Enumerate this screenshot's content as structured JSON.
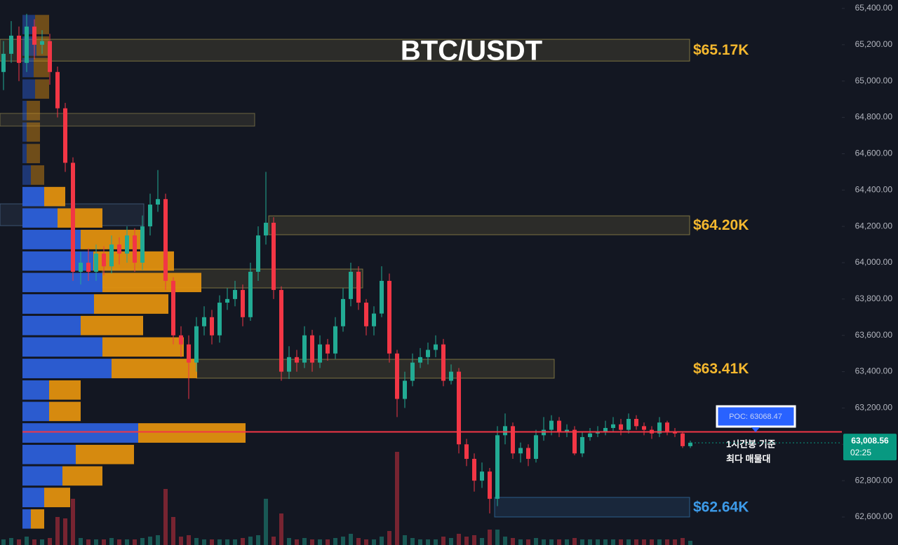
{
  "chart_data": {
    "type": "candlestick",
    "title": "BTC/USDT",
    "up_color": "#22ab94",
    "down_color": "#f23645",
    "ylim": [
      62600,
      65400
    ],
    "yticks": [
      {
        "value": 62600,
        "label": "62,600.00"
      },
      {
        "value": 62800,
        "label": "62,800.00"
      },
      {
        "value": 63000,
        "label": "63,000.00"
      },
      {
        "value": 63200,
        "label": "63,200.00"
      },
      {
        "value": 63400,
        "label": "63,400.00"
      },
      {
        "value": 63600,
        "label": "63,600.00"
      },
      {
        "value": 63800,
        "label": "63,800.00"
      },
      {
        "value": 64000,
        "label": "64,000.00"
      },
      {
        "value": 64200,
        "label": "64,200.00"
      },
      {
        "value": 64400,
        "label": "64,400.00"
      },
      {
        "value": 64600,
        "label": "64,600.00"
      },
      {
        "value": 64800,
        "label": "64,800.00"
      },
      {
        "value": 65000,
        "label": "65,000.00"
      },
      {
        "value": 65200,
        "label": "65,200.00"
      },
      {
        "value": 65400,
        "label": "65,400.00"
      }
    ],
    "open": [
      65050,
      65150,
      65250,
      65100,
      65300,
      65200,
      65220,
      65050,
      64850,
      64550,
      63950,
      64000,
      63950,
      64050,
      63980,
      64100,
      64050,
      64150,
      64000,
      64200,
      64320,
      64350,
      63900,
      63600,
      63550,
      63450,
      63650,
      63700,
      63600,
      63780,
      63800,
      63850,
      63700,
      63950,
      64150,
      64220,
      63850,
      63400,
      63480,
      63450,
      63600,
      63450,
      63550,
      63500,
      63650,
      63800,
      63950,
      63780,
      63650,
      63720,
      63900,
      63500,
      63250,
      63350,
      63450,
      63480,
      63520,
      63550,
      63350,
      63400,
      63000,
      62920,
      62800,
      62850,
      62700,
      63050,
      63100,
      62950,
      62980,
      62920,
      63050,
      63080,
      63130,
      63070,
      63080,
      62950,
      63040,
      63060,
      63070,
      63090,
      63110,
      63080,
      63140,
      63100,
      63080,
      63060,
      63120,
      63070,
      63060,
      62990
    ],
    "high": [
      65220,
      65330,
      65300,
      65370,
      65340,
      65280,
      65260,
      65080,
      64880,
      64580,
      64060,
      64080,
      64100,
      64090,
      64150,
      64140,
      64200,
      64190,
      64260,
      64380,
      64510,
      64380,
      63920,
      63650,
      63600,
      63700,
      63760,
      63740,
      63820,
      63860,
      63900,
      63880,
      64000,
      64200,
      64500,
      64250,
      63870,
      63540,
      63520,
      63650,
      63630,
      63600,
      63580,
      63700,
      63860,
      64000,
      63980,
      63800,
      63760,
      63980,
      63940,
      63520,
      63400,
      63500,
      63530,
      63560,
      63600,
      63580,
      63440,
      63420,
      63030,
      62950,
      62900,
      62870,
      63100,
      63170,
      63120,
      63010,
      63000,
      63080,
      63150,
      63160,
      63150,
      63110,
      63100,
      63070,
      63090,
      63100,
      63130,
      63150,
      63140,
      63170,
      63160,
      63120,
      63100,
      63150,
      63130,
      63090,
      63070,
      63020
    ],
    "low": [
      64950,
      65100,
      65000,
      65050,
      65120,
      65150,
      64980,
      64800,
      64500,
      63900,
      63880,
      63900,
      63900,
      63930,
      63940,
      63990,
      64000,
      63950,
      63960,
      64150,
      64280,
      63850,
      63550,
      63480,
      63250,
      63400,
      63600,
      63550,
      63560,
      63740,
      63760,
      63650,
      63680,
      63900,
      64100,
      63800,
      63350,
      63360,
      63400,
      63420,
      63400,
      63420,
      63460,
      63470,
      63620,
      63760,
      63740,
      63600,
      63600,
      63700,
      63450,
      63150,
      63200,
      63320,
      63420,
      63440,
      63480,
      63320,
      63330,
      62950,
      62880,
      62740,
      62760,
      62620,
      62660,
      63000,
      62920,
      62900,
      62880,
      62900,
      63020,
      63050,
      63040,
      63040,
      62940,
      62930,
      63020,
      63040,
      63050,
      63070,
      63050,
      63060,
      63080,
      63050,
      63030,
      63040,
      63050,
      63040,
      62980,
      62980
    ],
    "close": [
      65150,
      65250,
      65100,
      65300,
      65200,
      65220,
      65050,
      64850,
      64550,
      63950,
      64000,
      63950,
      64050,
      63980,
      64100,
      64050,
      64150,
      64000,
      64200,
      64320,
      64350,
      63900,
      63600,
      63550,
      63450,
      63650,
      63700,
      63600,
      63780,
      63800,
      63850,
      63700,
      63950,
      64150,
      64220,
      63850,
      63400,
      63480,
      63450,
      63600,
      63450,
      63550,
      63500,
      63650,
      63800,
      63950,
      63780,
      63650,
      63720,
      63900,
      63500,
      63250,
      63350,
      63450,
      63480,
      63520,
      63550,
      63350,
      63400,
      63000,
      62920,
      62800,
      62850,
      62700,
      63050,
      63100,
      62950,
      62980,
      62920,
      63050,
      63080,
      63130,
      63070,
      63080,
      62950,
      63040,
      63060,
      63070,
      63090,
      63110,
      63080,
      63140,
      63100,
      63080,
      63060,
      63120,
      63070,
      63060,
      62990,
      63008.56
    ],
    "volume": [
      8,
      10,
      8,
      12,
      8,
      8,
      10,
      40,
      38,
      66,
      10,
      8,
      8,
      8,
      10,
      8,
      8,
      8,
      10,
      12,
      14,
      80,
      40,
      12,
      14,
      10,
      8,
      8,
      8,
      8,
      8,
      10,
      12,
      14,
      66,
      12,
      45,
      10,
      8,
      10,
      8,
      8,
      8,
      10,
      12,
      16,
      10,
      8,
      8,
      12,
      20,
      133,
      14,
      10,
      8,
      8,
      8,
      12,
      10,
      16,
      12,
      14,
      10,
      22,
      22,
      12,
      10,
      8,
      8,
      10,
      8,
      8,
      8,
      8,
      10,
      8,
      8,
      8,
      8,
      8,
      8,
      8,
      8,
      8,
      8,
      8,
      8,
      8,
      10,
      6
    ],
    "volume_profile": {
      "buy_color": "#2c5fd9",
      "sell_color": "#e0900f",
      "bin_edges": [
        62530,
        62648,
        62767,
        62885,
        63003,
        63122,
        63240,
        63358,
        63477,
        63595,
        63713,
        63832,
        63950,
        64068,
        64187,
        64305,
        64423,
        64542,
        64660,
        64778,
        64897,
        65015,
        65133,
        65252,
        65370
      ],
      "buy": [
        12,
        31,
        57,
        76,
        165,
        38,
        38,
        127,
        114,
        83,
        102,
        114,
        101,
        83,
        50,
        31,
        12,
        6,
        6,
        6,
        18,
        16,
        20,
        18
      ],
      "sell": [
        19,
        37,
        57,
        83,
        153,
        45,
        45,
        122,
        116,
        89,
        106,
        141,
        115,
        89,
        64,
        30,
        19,
        19,
        19,
        19,
        20,
        22,
        18,
        20
      ]
    },
    "zones": [
      {
        "top": 65230,
        "bottom": 65110,
        "label": "$65.17K",
        "color": "#c9b458"
      },
      {
        "top": 64822,
        "bottom": 64752,
        "color": "#a89a5a"
      },
      {
        "top": 64324,
        "bottom": 64204,
        "color": "#5a7fa8"
      },
      {
        "top": 64258,
        "bottom": 64154,
        "label": "$64.20K",
        "color": "#c9b458"
      },
      {
        "top": 63965,
        "bottom": 63861,
        "color": "#c9b458"
      },
      {
        "top": 63468,
        "bottom": 63364,
        "label": "$63.41K",
        "color": "#c9b458"
      },
      {
        "top": 62708,
        "bottom": 62600,
        "label": "$62.64K",
        "color": "#3d8fd6"
      }
    ],
    "poc": {
      "value": 63068.47,
      "label": "POC: 63068.47",
      "color": "#f23645"
    },
    "poc_note": [
      "1시간봉 기준",
      "최다 매물대"
    ],
    "last_price": {
      "value": 63008.56,
      "label": "63,008.56"
    },
    "countdown": "02:25"
  }
}
